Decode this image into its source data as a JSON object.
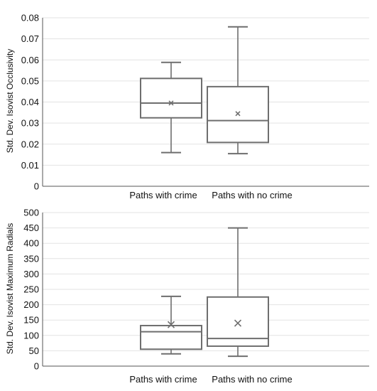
{
  "chart_data": [
    {
      "type": "box",
      "title": "",
      "xlabel": "",
      "ylabel": "Std. Dev. Isovist Occlusivity",
      "ylim": [
        0,
        0.08
      ],
      "yticks": [
        0,
        0.01,
        0.02,
        0.03,
        0.04,
        0.05,
        0.06,
        0.07,
        0.08
      ],
      "ytick_labels": [
        "0",
        "0.01",
        "0.02",
        "0.03",
        "0.04",
        "0.05",
        "0.06",
        "0.07",
        "0.08"
      ],
      "grid": true,
      "categories": [
        "Paths with crime",
        "Paths with no crime"
      ],
      "boxes": [
        {
          "min": 0.016,
          "q1": 0.0325,
          "median": 0.0395,
          "q3": 0.0512,
          "max": 0.0588,
          "mean": 0.0395
        },
        {
          "min": 0.0155,
          "q1": 0.0208,
          "median": 0.0312,
          "q3": 0.0473,
          "max": 0.0757,
          "mean": 0.0345
        }
      ]
    },
    {
      "type": "box",
      "title": "",
      "xlabel": "",
      "ylabel": "Std. Dev. Isovist Maximum Radials",
      "ylim": [
        0,
        500
      ],
      "yticks": [
        0,
        50,
        100,
        150,
        200,
        250,
        300,
        350,
        400,
        450,
        500
      ],
      "ytick_labels": [
        "0",
        "50",
        "100",
        "150",
        "200",
        "250",
        "300",
        "350",
        "400",
        "450",
        "500"
      ],
      "grid": true,
      "categories": [
        "Paths with crime",
        "Paths with no crime"
      ],
      "boxes": [
        {
          "min": 40,
          "q1": 55,
          "median": 112,
          "q3": 132,
          "max": 227,
          "mean": 135
        },
        {
          "min": 32,
          "q1": 65,
          "median": 90,
          "q3": 225,
          "max": 450,
          "mean": 140
        }
      ]
    }
  ]
}
